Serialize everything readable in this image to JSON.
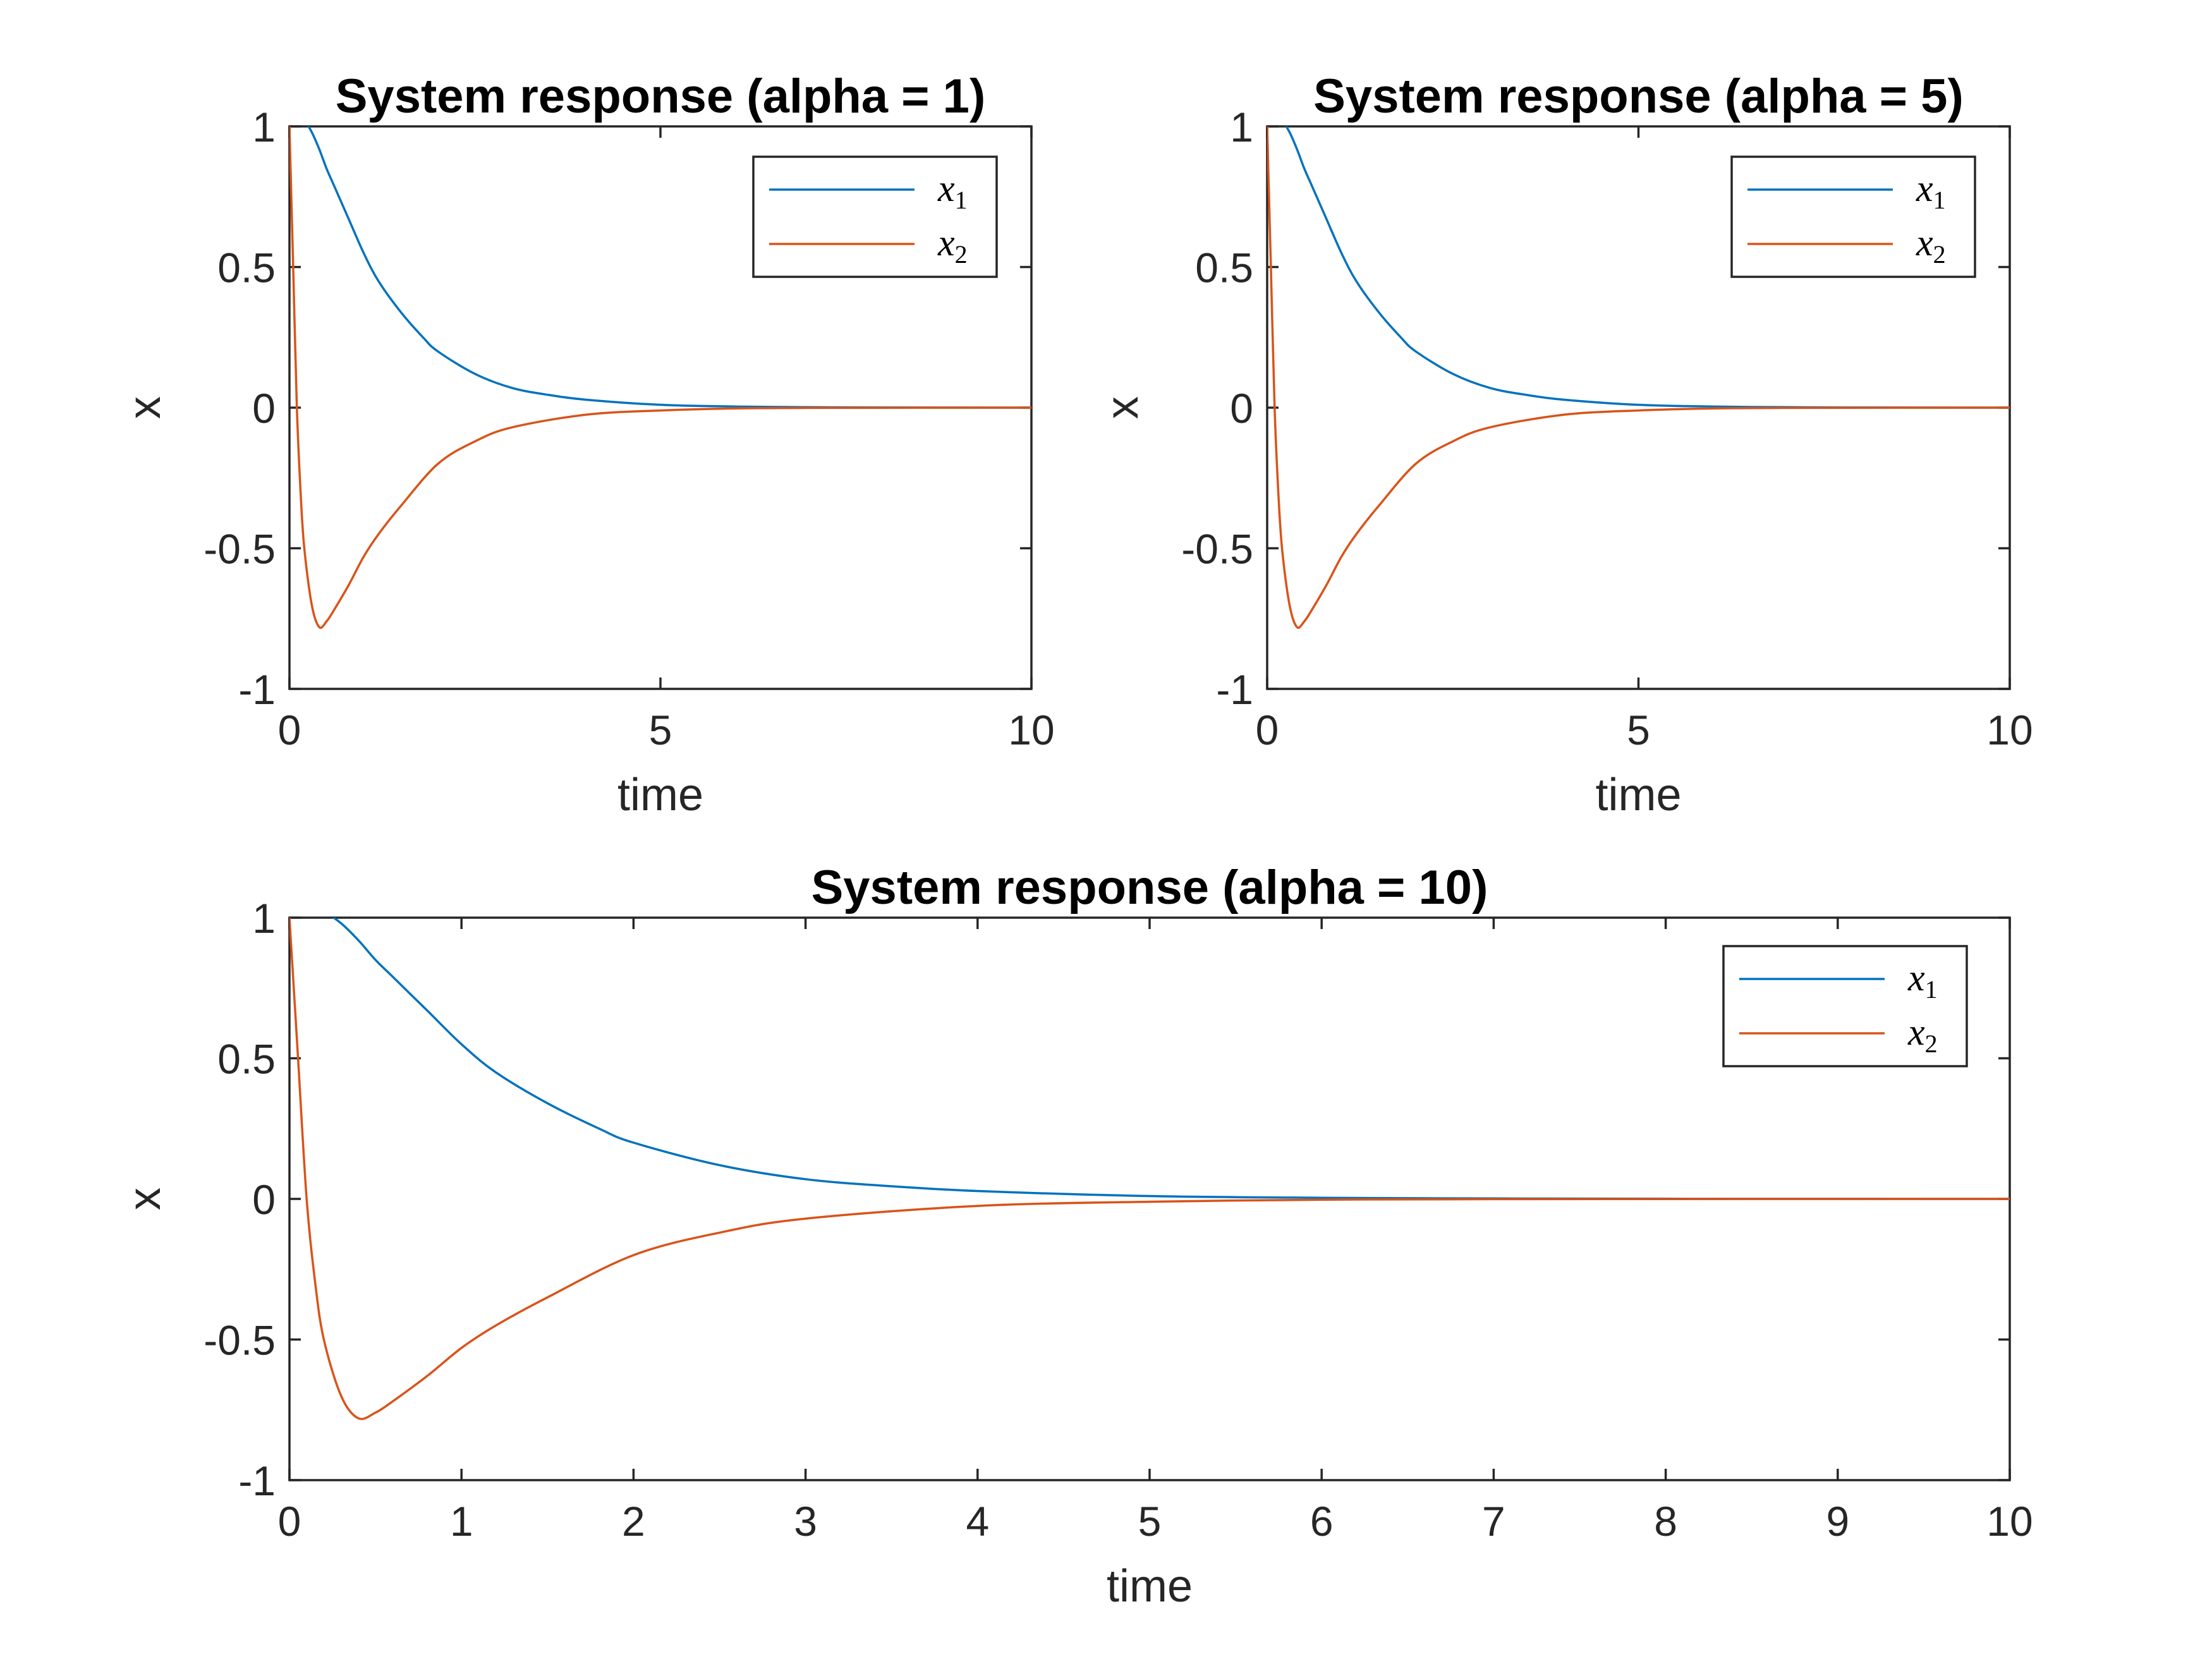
{
  "chart_data": [
    {
      "type": "line",
      "title": "System response (alpha = 1)",
      "xlabel": "time",
      "ylabel": "x",
      "xlim": [
        0,
        10
      ],
      "ylim": [
        -1,
        1
      ],
      "xticks": [
        "0",
        "5",
        "10"
      ],
      "yticks": [
        "-1",
        "-0.5",
        "0",
        "0.5",
        "1"
      ],
      "legend_position": "top-right",
      "grid": false,
      "series": [
        {
          "name": "x1",
          "legend_base": "x",
          "legend_sub": "1",
          "color": "#0072BD",
          "x": [
            0,
            0.1,
            0.2,
            0.3,
            0.4,
            0.5,
            0.6,
            0.8,
            1.0,
            1.2,
            1.5,
            1.8,
            2.0,
            2.5,
            3.0,
            3.5,
            4.0,
            5.0,
            6.0,
            7.0,
            8.0,
            10.0
          ],
          "y": [
            1.0,
            1.03,
            1.02,
            0.98,
            0.92,
            0.85,
            0.79,
            0.67,
            0.55,
            0.45,
            0.34,
            0.25,
            0.2,
            0.12,
            0.07,
            0.045,
            0.028,
            0.01,
            0.004,
            0.0015,
            0.0005,
            0.0
          ]
        },
        {
          "name": "x2",
          "legend_base": "x",
          "legend_sub": "2",
          "color": "#D95319",
          "x": [
            0,
            0.05,
            0.1,
            0.15,
            0.2,
            0.3,
            0.4,
            0.5,
            0.6,
            0.8,
            1.0,
            1.2,
            1.5,
            2.0,
            2.5,
            3.0,
            4.0,
            5.0,
            6.0,
            7.0,
            10.0
          ],
          "y": [
            1.0,
            0.5,
            0.0,
            -0.3,
            -0.5,
            -0.7,
            -0.78,
            -0.76,
            -0.72,
            -0.63,
            -0.53,
            -0.45,
            -0.35,
            -0.2,
            -0.12,
            -0.07,
            -0.025,
            -0.01,
            -0.003,
            -0.001,
            0.0
          ]
        }
      ]
    },
    {
      "type": "line",
      "title": "System response (alpha = 5)",
      "xlabel": "time",
      "ylabel": "x",
      "xlim": [
        0,
        10
      ],
      "ylim": [
        -1,
        1
      ],
      "xticks": [
        "0",
        "5",
        "10"
      ],
      "yticks": [
        "-1",
        "-0.5",
        "0",
        "0.5",
        "1"
      ],
      "legend_position": "top-right",
      "grid": false,
      "series": [
        {
          "name": "x1",
          "legend_base": "x",
          "legend_sub": "1",
          "color": "#0072BD",
          "x": [
            0,
            0.1,
            0.2,
            0.3,
            0.4,
            0.5,
            0.6,
            0.8,
            1.0,
            1.2,
            1.5,
            1.8,
            2.0,
            2.5,
            3.0,
            3.5,
            4.0,
            5.0,
            6.0,
            7.0,
            8.0,
            10.0
          ],
          "y": [
            1.0,
            1.03,
            1.02,
            0.98,
            0.92,
            0.85,
            0.79,
            0.67,
            0.55,
            0.45,
            0.34,
            0.25,
            0.2,
            0.12,
            0.07,
            0.045,
            0.028,
            0.01,
            0.004,
            0.0015,
            0.0005,
            0.0
          ]
        },
        {
          "name": "x2",
          "legend_base": "x",
          "legend_sub": "2",
          "color": "#D95319",
          "x": [
            0,
            0.05,
            0.1,
            0.15,
            0.2,
            0.3,
            0.4,
            0.5,
            0.6,
            0.8,
            1.0,
            1.2,
            1.5,
            2.0,
            2.5,
            3.0,
            4.0,
            5.0,
            6.0,
            7.0,
            10.0
          ],
          "y": [
            1.0,
            0.5,
            0.0,
            -0.3,
            -0.5,
            -0.7,
            -0.78,
            -0.76,
            -0.72,
            -0.63,
            -0.53,
            -0.45,
            -0.35,
            -0.2,
            -0.12,
            -0.07,
            -0.025,
            -0.01,
            -0.003,
            -0.001,
            0.0
          ]
        }
      ]
    },
    {
      "type": "line",
      "title": "System response (alpha = 10)",
      "xlabel": "time",
      "ylabel": "x",
      "xlim": [
        0,
        10
      ],
      "ylim": [
        -1,
        1
      ],
      "xticks": [
        "0",
        "1",
        "2",
        "3",
        "4",
        "5",
        "6",
        "7",
        "8",
        "9",
        "10"
      ],
      "yticks": [
        "-1",
        "-0.5",
        "0",
        "0.5",
        "1"
      ],
      "legend_position": "top-right",
      "grid": false,
      "series": [
        {
          "name": "x1",
          "legend_base": "x",
          "legend_sub": "1",
          "color": "#0072BD",
          "x": [
            0,
            0.1,
            0.2,
            0.3,
            0.4,
            0.5,
            0.6,
            0.8,
            1.0,
            1.2,
            1.5,
            1.8,
            2.0,
            2.5,
            3.0,
            3.5,
            4.0,
            5.0,
            6.0,
            7.0,
            8.0,
            10.0
          ],
          "y": [
            1.0,
            1.03,
            1.02,
            0.98,
            0.92,
            0.85,
            0.79,
            0.67,
            0.55,
            0.45,
            0.34,
            0.25,
            0.2,
            0.12,
            0.07,
            0.045,
            0.028,
            0.01,
            0.004,
            0.0015,
            0.0005,
            0.0
          ]
        },
        {
          "name": "x2",
          "legend_base": "x",
          "legend_sub": "2",
          "color": "#D95319",
          "x": [
            0,
            0.05,
            0.1,
            0.15,
            0.2,
            0.3,
            0.4,
            0.5,
            0.6,
            0.8,
            1.0,
            1.2,
            1.5,
            2.0,
            2.5,
            3.0,
            4.0,
            5.0,
            6.0,
            7.0,
            10.0
          ],
          "y": [
            1.0,
            0.5,
            0.0,
            -0.3,
            -0.5,
            -0.7,
            -0.78,
            -0.76,
            -0.72,
            -0.63,
            -0.53,
            -0.45,
            -0.35,
            -0.2,
            -0.12,
            -0.07,
            -0.025,
            -0.01,
            -0.003,
            -0.001,
            0.0
          ]
        }
      ]
    }
  ]
}
